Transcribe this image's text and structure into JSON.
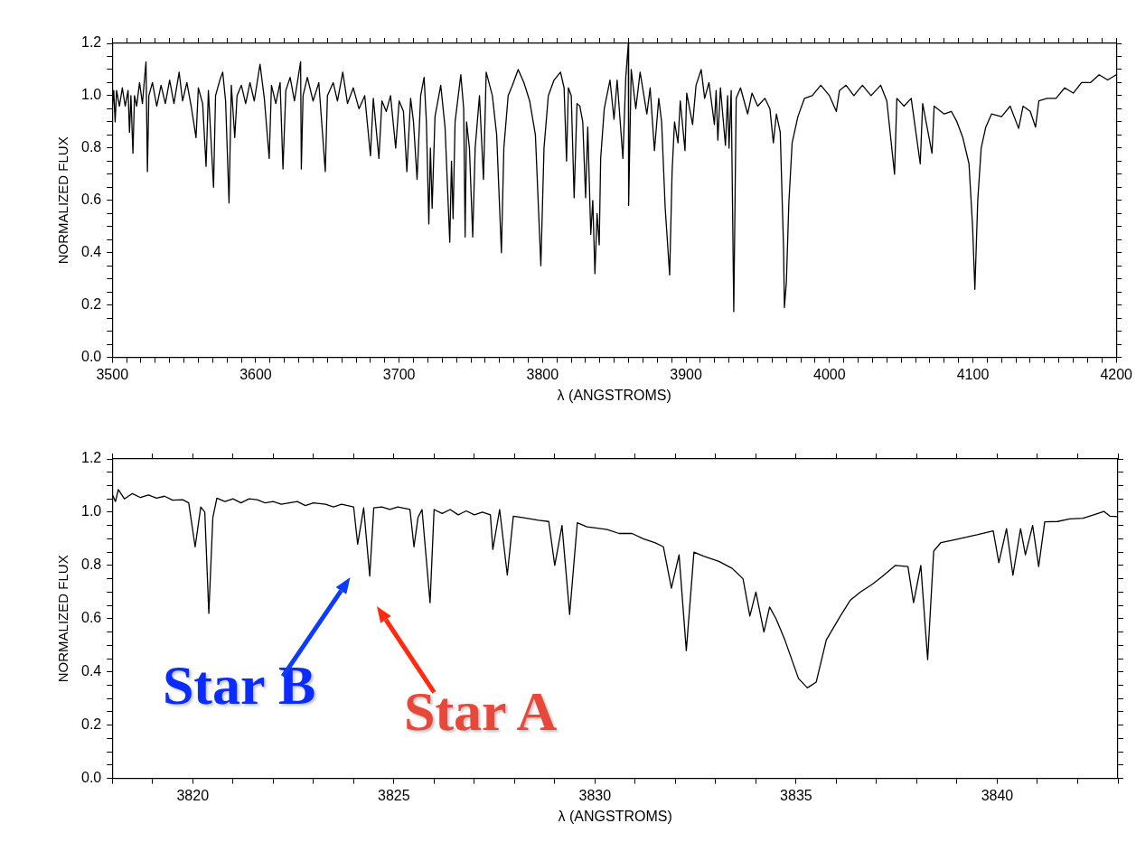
{
  "chart_data": [
    {
      "type": "line",
      "xlabel": "λ (ANGSTROMS)",
      "ylabel": "NORMALIZED FLUX",
      "color": "#000000",
      "xlim": [
        3500,
        4200
      ],
      "ylim": [
        0,
        1.2
      ],
      "xticks": [
        {
          "value": 3500,
          "label": "3500"
        },
        {
          "value": 3510,
          "label": null
        },
        {
          "value": 3520,
          "label": null
        },
        {
          "value": 3530,
          "label": null
        },
        {
          "value": 3540,
          "label": null
        },
        {
          "value": 3550,
          "label": null
        },
        {
          "value": 3560,
          "label": null
        },
        {
          "value": 3570,
          "label": null
        },
        {
          "value": 3580,
          "label": null
        },
        {
          "value": 3590,
          "label": null
        },
        {
          "value": 3600,
          "label": "3600"
        },
        {
          "value": 3610,
          "label": null
        },
        {
          "value": 3620,
          "label": null
        },
        {
          "value": 3630,
          "label": null
        },
        {
          "value": 3640,
          "label": null
        },
        {
          "value": 3650,
          "label": null
        },
        {
          "value": 3660,
          "label": null
        },
        {
          "value": 3670,
          "label": null
        },
        {
          "value": 3680,
          "label": null
        },
        {
          "value": 3690,
          "label": null
        },
        {
          "value": 3700,
          "label": "3700"
        },
        {
          "value": 3710,
          "label": null
        },
        {
          "value": 3720,
          "label": null
        },
        {
          "value": 3730,
          "label": null
        },
        {
          "value": 3740,
          "label": null
        },
        {
          "value": 3750,
          "label": null
        },
        {
          "value": 3760,
          "label": null
        },
        {
          "value": 3770,
          "label": null
        },
        {
          "value": 3780,
          "label": null
        },
        {
          "value": 3790,
          "label": null
        },
        {
          "value": 3800,
          "label": "3800"
        },
        {
          "value": 3810,
          "label": null
        },
        {
          "value": 3820,
          "label": null
        },
        {
          "value": 3830,
          "label": null
        },
        {
          "value": 3840,
          "label": null
        },
        {
          "value": 3850,
          "label": null
        },
        {
          "value": 3860,
          "label": null
        },
        {
          "value": 3870,
          "label": null
        },
        {
          "value": 3880,
          "label": null
        },
        {
          "value": 3890,
          "label": null
        },
        {
          "value": 3900,
          "label": "3900"
        },
        {
          "value": 3910,
          "label": null
        },
        {
          "value": 3920,
          "label": null
        },
        {
          "value": 3930,
          "label": null
        },
        {
          "value": 3940,
          "label": null
        },
        {
          "value": 3950,
          "label": null
        },
        {
          "value": 3960,
          "label": null
        },
        {
          "value": 3970,
          "label": null
        },
        {
          "value": 3980,
          "label": null
        },
        {
          "value": 3990,
          "label": null
        },
        {
          "value": 4000,
          "label": "4000"
        },
        {
          "value": 4010,
          "label": null
        },
        {
          "value": 4020,
          "label": null
        },
        {
          "value": 4030,
          "label": null
        },
        {
          "value": 4040,
          "label": null
        },
        {
          "value": 4050,
          "label": null
        },
        {
          "value": 4060,
          "label": null
        },
        {
          "value": 4070,
          "label": null
        },
        {
          "value": 4080,
          "label": null
        },
        {
          "value": 4090,
          "label": null
        },
        {
          "value": 4100,
          "label": "4100"
        },
        {
          "value": 4110,
          "label": null
        },
        {
          "value": 4120,
          "label": null
        },
        {
          "value": 4130,
          "label": null
        },
        {
          "value": 4140,
          "label": null
        },
        {
          "value": 4150,
          "label": null
        },
        {
          "value": 4160,
          "label": null
        },
        {
          "value": 4170,
          "label": null
        },
        {
          "value": 4180,
          "label": null
        },
        {
          "value": 4190,
          "label": null
        },
        {
          "value": 4200,
          "label": "4200"
        }
      ],
      "yticks": [
        {
          "value": 0,
          "label": "0.0"
        },
        {
          "value": 0.05,
          "label": null
        },
        {
          "value": 0.1,
          "label": null
        },
        {
          "value": 0.15,
          "label": null
        },
        {
          "value": 0.2,
          "label": "0.2"
        },
        {
          "value": 0.25,
          "label": null
        },
        {
          "value": 0.3,
          "label": null
        },
        {
          "value": 0.35,
          "label": null
        },
        {
          "value": 0.4,
          "label": "0.4"
        },
        {
          "value": 0.45,
          "label": null
        },
        {
          "value": 0.5,
          "label": null
        },
        {
          "value": 0.55,
          "label": null
        },
        {
          "value": 0.6,
          "label": "0.6"
        },
        {
          "value": 0.65,
          "label": null
        },
        {
          "value": 0.7,
          "label": null
        },
        {
          "value": 0.75,
          "label": null
        },
        {
          "value": 0.8,
          "label": "0.8"
        },
        {
          "value": 0.85,
          "label": null
        },
        {
          "value": 0.9,
          "label": null
        },
        {
          "value": 0.95,
          "label": null
        },
        {
          "value": 1,
          "label": "1.0"
        },
        {
          "value": 1.05,
          "label": null
        },
        {
          "value": 1.1,
          "label": null
        },
        {
          "value": 1.15,
          "label": null
        },
        {
          "value": 1.2,
          "label": "1.2"
        }
      ],
      "x": [
        3500,
        3501,
        3502,
        3503,
        3505,
        3507,
        3509,
        3511,
        3512,
        3513,
        3514.4,
        3515.5,
        3517,
        3519,
        3521,
        3523.5,
        3524.5,
        3525.5,
        3528,
        3531,
        3534,
        3537,
        3540,
        3543,
        3546.6,
        3549,
        3552,
        3555,
        3558.4,
        3560,
        3563,
        3565.4,
        3567,
        3570.6,
        3572,
        3575,
        3577,
        3579,
        3581.4,
        3583,
        3585.4,
        3587,
        3590,
        3593,
        3596,
        3599,
        3603,
        3606,
        3609.4,
        3611,
        3614,
        3617,
        3619,
        3621,
        3624,
        3627,
        3631.3,
        3631.8,
        3633,
        3636,
        3640,
        3644,
        3648.5,
        3650,
        3654,
        3657,
        3660.7,
        3664,
        3668,
        3672,
        3676,
        3680,
        3682,
        3685.9,
        3688,
        3691,
        3694,
        3697.6,
        3700,
        3703,
        3705.4,
        3708,
        3710,
        3712.5,
        3715,
        3717.4,
        3719,
        3720.7,
        3721.8,
        3723,
        3725,
        3729,
        3732,
        3735.3,
        3736.5,
        3737.6,
        3739,
        3743,
        3745,
        3746,
        3747,
        3749,
        3751.3,
        3753,
        3756,
        3758.8,
        3760.7,
        3765,
        3768,
        3771.3,
        3773,
        3776,
        3779,
        3783,
        3787,
        3791,
        3795,
        3798.8,
        3801,
        3804,
        3808,
        3812.5,
        3815,
        3816.7,
        3818,
        3820,
        3822,
        3824,
        3826,
        3828,
        3830,
        3831.5,
        3833.6,
        3835,
        3836.5,
        3838,
        3839.5,
        3840.5,
        3843,
        3847,
        3849.8,
        3852,
        3856,
        3858,
        3859.8,
        3860,
        3861.8,
        3865,
        3868,
        3872.7,
        3875,
        3878,
        3881,
        3883,
        3885.5,
        3888.6,
        3890.3,
        3892,
        3894.4,
        3896,
        3899.3,
        3900.5,
        3904.6,
        3907,
        3910.6,
        3913,
        3916,
        3919.8,
        3921,
        3922.2,
        3924,
        3927.5,
        3929,
        3930,
        3931.5,
        3933.3,
        3935,
        3938,
        3943,
        3946,
        3950,
        3955,
        3958.5,
        3960.9,
        3963,
        3965.7,
        3968,
        3968.6,
        3970,
        3971.7,
        3974,
        3978,
        3982.6,
        3988,
        3994,
        4000,
        4004.8,
        4007,
        4011.6,
        4017,
        4023,
        4029,
        4035.7,
        4040,
        4045.4,
        4047,
        4052,
        4057,
        4063.3,
        4065,
        4071.5,
        4073,
        4080,
        4085,
        4088.9,
        4093,
        4097.3,
        4099.8,
        4101.4,
        4103.4,
        4105.8,
        4109,
        4113,
        4120,
        4126,
        4131.9,
        4135,
        4140,
        4143.7,
        4146,
        4151.7,
        4158,
        4164,
        4170,
        4175.8,
        4182,
        4188,
        4194,
        4200
      ],
      "values": [
        0.95,
        1.02,
        0.9,
        1.02,
        0.96,
        1.03,
        0.96,
        1.02,
        0.86,
        1.0,
        0.78,
        1.0,
        0.96,
        1.05,
        0.97,
        1.13,
        0.71,
        1.0,
        1.05,
        0.96,
        1.04,
        0.97,
        1.06,
        0.97,
        1.09,
        0.98,
        1.05,
        0.96,
        0.84,
        1.03,
        0.97,
        0.73,
        1.02,
        0.65,
        1.0,
        1.06,
        1.09,
        0.98,
        0.59,
        1.04,
        0.84,
        1.0,
        1.04,
        0.97,
        1.05,
        0.98,
        1.12,
        0.99,
        0.76,
        1.04,
        0.97,
        1.05,
        0.72,
        1.02,
        1.07,
        0.98,
        1.13,
        0.72,
        1.0,
        1.07,
        0.98,
        1.05,
        0.71,
        1.0,
        1.05,
        0.98,
        1.09,
        0.97,
        1.03,
        0.95,
        1.0,
        0.77,
        0.99,
        0.76,
        0.98,
        0.94,
        1.0,
        0.8,
        0.98,
        0.94,
        0.71,
        0.99,
        0.9,
        0.68,
        1.0,
        1.07,
        0.9,
        0.51,
        0.8,
        0.57,
        0.92,
        1.04,
        0.88,
        0.44,
        0.75,
        0.53,
        0.9,
        1.08,
        0.95,
        0.46,
        0.9,
        0.8,
        0.46,
        0.8,
        1.0,
        0.68,
        1.09,
        1.0,
        0.85,
        0.4,
        0.8,
        1.0,
        1.04,
        1.1,
        1.05,
        0.98,
        0.85,
        0.35,
        0.8,
        1.0,
        1.06,
        1.09,
        1.03,
        0.75,
        1.03,
        1.0,
        0.61,
        0.97,
        0.96,
        0.9,
        0.61,
        0.88,
        0.47,
        0.6,
        0.32,
        0.55,
        0.43,
        0.76,
        0.95,
        1.06,
        0.91,
        1.06,
        0.76,
        1.07,
        1.2,
        0.58,
        1.1,
        0.95,
        1.09,
        0.93,
        1.03,
        0.79,
        0.99,
        0.9,
        0.57,
        0.315,
        0.71,
        0.9,
        0.82,
        0.98,
        0.79,
        1.01,
        0.89,
        1.04,
        1.1,
        0.99,
        1.05,
        0.89,
        1.02,
        0.83,
        1.03,
        0.81,
        1.0,
        0.8,
        1.02,
        0.175,
        0.99,
        1.03,
        0.93,
        1.01,
        0.96,
        0.99,
        0.95,
        0.82,
        0.93,
        0.86,
        0.42,
        0.19,
        0.29,
        0.59,
        0.82,
        0.92,
        0.99,
        1.0,
        1.04,
        1.0,
        0.94,
        1.02,
        1.04,
        1.0,
        1.04,
        1.0,
        1.04,
        0.98,
        0.7,
        0.99,
        0.96,
        0.99,
        0.74,
        0.97,
        0.78,
        0.96,
        0.93,
        0.94,
        0.9,
        0.84,
        0.74,
        0.5,
        0.26,
        0.6,
        0.8,
        0.88,
        0.93,
        0.92,
        0.96,
        0.875,
        0.96,
        0.94,
        0.88,
        0.98,
        0.99,
        0.99,
        1.03,
        1.01,
        1.05,
        1.05,
        1.08,
        1.06,
        1.08
      ]
    },
    {
      "type": "line",
      "xlabel": "λ (ANGSTROMS)",
      "ylabel": "NORMALIZED FLUX",
      "color": "#000000",
      "xlim": [
        3818,
        3843
      ],
      "ylim": [
        0,
        1.2
      ],
      "xticks": [
        {
          "value": 3818,
          "label": null
        },
        {
          "value": 3819,
          "label": null
        },
        {
          "value": 3820,
          "label": "3820"
        },
        {
          "value": 3821,
          "label": null
        },
        {
          "value": 3822,
          "label": null
        },
        {
          "value": 3823,
          "label": null
        },
        {
          "value": 3824,
          "label": null
        },
        {
          "value": 3825,
          "label": "3825"
        },
        {
          "value": 3826,
          "label": null
        },
        {
          "value": 3827,
          "label": null
        },
        {
          "value": 3828,
          "label": null
        },
        {
          "value": 3829,
          "label": null
        },
        {
          "value": 3830,
          "label": "3830"
        },
        {
          "value": 3831,
          "label": null
        },
        {
          "value": 3832,
          "label": null
        },
        {
          "value": 3833,
          "label": null
        },
        {
          "value": 3834,
          "label": null
        },
        {
          "value": 3835,
          "label": "3835"
        },
        {
          "value": 3836,
          "label": null
        },
        {
          "value": 3837,
          "label": null
        },
        {
          "value": 3838,
          "label": null
        },
        {
          "value": 3839,
          "label": null
        },
        {
          "value": 3840,
          "label": "3840"
        },
        {
          "value": 3841,
          "label": null
        },
        {
          "value": 3842,
          "label": null
        },
        {
          "value": 3843,
          "label": null
        }
      ],
      "yticks": [
        {
          "value": 0,
          "label": "0.0"
        },
        {
          "value": 0.05,
          "label": null
        },
        {
          "value": 0.1,
          "label": null
        },
        {
          "value": 0.15,
          "label": null
        },
        {
          "value": 0.2,
          "label": "0.2"
        },
        {
          "value": 0.25,
          "label": null
        },
        {
          "value": 0.3,
          "label": null
        },
        {
          "value": 0.35,
          "label": null
        },
        {
          "value": 0.4,
          "label": "0.4"
        },
        {
          "value": 0.45,
          "label": null
        },
        {
          "value": 0.5,
          "label": null
        },
        {
          "value": 0.55,
          "label": null
        },
        {
          "value": 0.6,
          "label": "0.6"
        },
        {
          "value": 0.65,
          "label": null
        },
        {
          "value": 0.7,
          "label": null
        },
        {
          "value": 0.75,
          "label": null
        },
        {
          "value": 0.8,
          "label": "0.8"
        },
        {
          "value": 0.85,
          "label": null
        },
        {
          "value": 0.9,
          "label": null
        },
        {
          "value": 0.95,
          "label": null
        },
        {
          "value": 1,
          "label": "1.0"
        },
        {
          "value": 1.05,
          "label": null
        },
        {
          "value": 1.1,
          "label": null
        },
        {
          "value": 1.15,
          "label": null
        },
        {
          "value": 1.2,
          "label": "1.2"
        }
      ],
      "annotations": [
        "Star B",
        "Star A"
      ],
      "x": [
        3818,
        3818.08,
        3818.15,
        3818.3,
        3818.5,
        3818.7,
        3818.9,
        3819.1,
        3819.3,
        3819.5,
        3819.75,
        3819.9,
        3820.06,
        3820.2,
        3820.3,
        3820.4,
        3820.5,
        3820.6,
        3820.8,
        3821,
        3821.2,
        3821.4,
        3821.6,
        3821.8,
        3822,
        3822.2,
        3822.4,
        3822.6,
        3822.8,
        3823,
        3823.3,
        3823.5,
        3823.7,
        3824,
        3824.1,
        3824.25,
        3824.4,
        3824.5,
        3824.7,
        3824.9,
        3825.1,
        3825.4,
        3825.5,
        3825.6,
        3825.7,
        3825.9,
        3826,
        3826.2,
        3826.4,
        3826.6,
        3826.8,
        3827,
        3827.2,
        3827.4,
        3827.46,
        3827.63,
        3827.82,
        3827.97,
        3828.2,
        3828.4,
        3828.6,
        3828.85,
        3829,
        3829.18,
        3829.37,
        3829.56,
        3829.8,
        3830.06,
        3830.3,
        3830.6,
        3830.92,
        3831.2,
        3831.5,
        3831.7,
        3831.9,
        3832.09,
        3832.27,
        3832.46,
        3832.7,
        3833.08,
        3833.4,
        3833.68,
        3833.85,
        3834,
        3834.2,
        3834.34,
        3834.5,
        3834.72,
        3835.06,
        3835.28,
        3835.5,
        3835.75,
        3836.1,
        3836.35,
        3836.6,
        3836.9,
        3837.13,
        3837.47,
        3837.78,
        3837.92,
        3838.1,
        3838.27,
        3838.42,
        3838.6,
        3838.9,
        3839.2,
        3839.5,
        3839.9,
        3840.04,
        3840.23,
        3840.39,
        3840.58,
        3840.7,
        3840.88,
        3841.03,
        3841.18,
        3841.5,
        3841.8,
        3842.13,
        3842.4,
        3842.65,
        3842.8,
        3843
      ],
      "values": [
        1.066,
        1.04,
        1.085,
        1.05,
        1.07,
        1.055,
        1.065,
        1.053,
        1.06,
        1.045,
        1.047,
        1.035,
        0.87,
        1.02,
        1.0,
        0.62,
        0.98,
        1.053,
        1.04,
        1.05,
        1.035,
        1.05,
        1.047,
        1.035,
        1.04,
        1.03,
        1.035,
        1.04,
        1.025,
        1.035,
        1.03,
        1.02,
        1.03,
        1.02,
        0.88,
        1.016,
        0.76,
        1.016,
        1.02,
        1.01,
        1.02,
        1.01,
        0.87,
        0.98,
        1.01,
        0.66,
        1.01,
        0.995,
        1.01,
        0.99,
        1.005,
        0.99,
        1.0,
        0.99,
        0.86,
        1.01,
        0.764,
        0.985,
        0.98,
        0.975,
        0.97,
        0.965,
        0.8,
        0.95,
        0.616,
        0.96,
        0.945,
        0.94,
        0.935,
        0.92,
        0.92,
        0.9,
        0.885,
        0.87,
        0.714,
        0.84,
        0.48,
        0.85,
        0.835,
        0.815,
        0.79,
        0.75,
        0.61,
        0.7,
        0.55,
        0.644,
        0.6,
        0.52,
        0.375,
        0.34,
        0.362,
        0.52,
        0.61,
        0.67,
        0.7,
        0.73,
        0.757,
        0.8,
        0.796,
        0.66,
        0.8,
        0.446,
        0.854,
        0.886,
        0.895,
        0.905,
        0.915,
        0.93,
        0.81,
        0.938,
        0.763,
        0.938,
        0.84,
        0.95,
        0.796,
        0.964,
        0.965,
        0.975,
        0.977,
        0.99,
        1.003,
        0.985,
        0.983
      ]
    }
  ]
}
